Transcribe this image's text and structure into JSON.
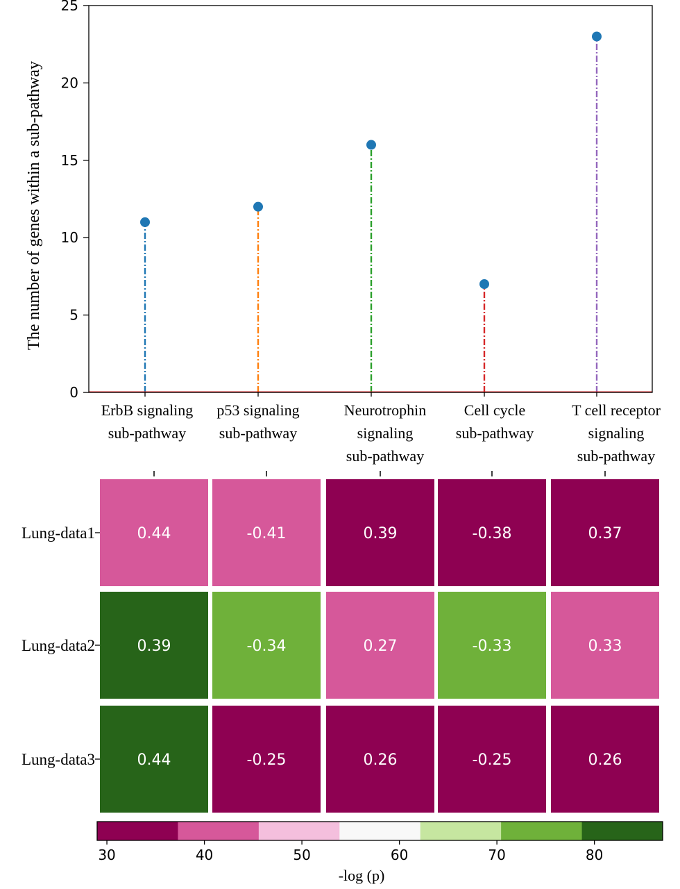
{
  "chart_data": [
    {
      "type": "stem",
      "ylabel": "The number of genes within a sub-pathway",
      "ylim": [
        0,
        25
      ],
      "yticks": [
        0,
        5,
        10,
        15,
        20,
        25
      ],
      "ytick_labels": [
        "0",
        "5",
        "10",
        "15",
        "20",
        "25"
      ],
      "categories": [
        [
          "ErbB signaling",
          "sub-pathway"
        ],
        [
          "p53 signaling",
          "sub-pathway"
        ],
        [
          "Neurotrophin",
          "signaling",
          "sub-pathway"
        ],
        [
          "Cell cycle",
          "sub-pathway"
        ],
        [
          "T cell receptor",
          "signaling",
          "sub-pathway"
        ]
      ],
      "values": [
        11,
        12,
        16,
        7,
        23
      ],
      "stem_colors": [
        "#1f77b4",
        "#ff7f0e",
        "#2ca02c",
        "#d62728",
        "#9467bd"
      ],
      "marker_color": "#1f77b4",
      "baseline_color": "#d62728"
    },
    {
      "type": "heatmap",
      "rows": [
        "Lung-data1",
        "Lung-data2",
        "Lung-data3"
      ],
      "cells": [
        [
          {
            "label": "0.44",
            "color": "#d6589a"
          },
          {
            "label": "-0.41",
            "color": "#d6589a"
          },
          {
            "label": "0.39",
            "color": "#8e0152"
          },
          {
            "label": "-0.38",
            "color": "#8e0152"
          },
          {
            "label": "0.37",
            "color": "#8e0152"
          }
        ],
        [
          {
            "label": "0.39",
            "color": "#276419"
          },
          {
            "label": "-0.34",
            "color": "#6fb13a"
          },
          {
            "label": "0.27",
            "color": "#d6589a"
          },
          {
            "label": "-0.33",
            "color": "#6fb13a"
          },
          {
            "label": "0.33",
            "color": "#d6589a"
          }
        ],
        [
          {
            "label": "0.44",
            "color": "#276419"
          },
          {
            "label": "-0.25",
            "color": "#8e0152"
          },
          {
            "label": "0.26",
            "color": "#8e0152"
          },
          {
            "label": "-0.25",
            "color": "#8e0152"
          },
          {
            "label": "0.26",
            "color": "#8e0152"
          }
        ]
      ],
      "colorbar": {
        "label": "-log (p)",
        "range": [
          29,
          87
        ],
        "ticks": [
          30,
          40,
          50,
          60,
          70,
          80
        ],
        "tick_labels": [
          "30",
          "40",
          "50",
          "60",
          "70",
          "80"
        ],
        "colors": [
          "#8e0152",
          "#d6589a",
          "#f4bfdd",
          "#f8f8f8",
          "#c6e6a0",
          "#6fb13a",
          "#276419"
        ]
      }
    }
  ]
}
